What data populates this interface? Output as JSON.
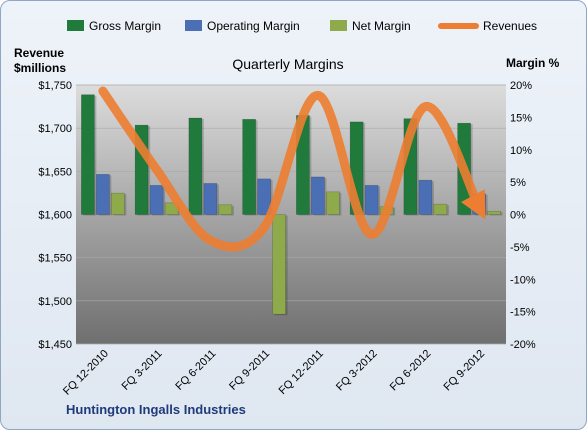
{
  "chart_data": {
    "type": "bar",
    "title": "Quarterly Margins",
    "company": "Huntington Ingalls Industries",
    "ylabel_left": [
      "Revenue",
      "$millions"
    ],
    "ylabel_right": "Margin %",
    "categories": [
      "FQ 12-2010",
      "FQ 3-2011",
      "FQ 6-2011",
      "FQ 9-2011",
      "FQ 12-2011",
      "FQ 3-2012",
      "FQ 6-2012",
      "FQ 9-2012"
    ],
    "ylim_left": [
      1450,
      1750
    ],
    "ylim_right": [
      -20,
      20
    ],
    "yticks_left": [
      "$1,750",
      "$1,700",
      "$1,650",
      "$1,600",
      "$1,550",
      "$1,500",
      "$1,450"
    ],
    "yticks_right": [
      "20%",
      "15%",
      "10%",
      "5%",
      "0%",
      "-5%",
      "-10%",
      "-15%",
      "-20%"
    ],
    "legend_position": "top",
    "series": [
      {
        "name": "Gross Margin",
        "kind": "bar",
        "axis": "right",
        "color": "#1f7a3c",
        "values": [
          18.5,
          13.8,
          14.9,
          14.7,
          15.3,
          14.3,
          14.8,
          14.1
        ]
      },
      {
        "name": "Operating Margin",
        "kind": "bar",
        "axis": "right",
        "color": "#4a6fb5",
        "values": [
          6.2,
          4.5,
          4.8,
          5.5,
          5.8,
          4.5,
          5.3,
          3.2
        ]
      },
      {
        "name": "Net Margin",
        "kind": "bar",
        "axis": "right",
        "color": "#8faa4a",
        "values": [
          3.3,
          1.8,
          1.5,
          -15.4,
          3.5,
          1.2,
          1.6,
          0.5
        ]
      },
      {
        "name": "Revenues",
        "kind": "line",
        "axis": "left",
        "color": "#ed7d31",
        "values": [
          1743,
          1652,
          1570,
          1585,
          1738,
          1577,
          1725,
          1608
        ]
      }
    ]
  }
}
